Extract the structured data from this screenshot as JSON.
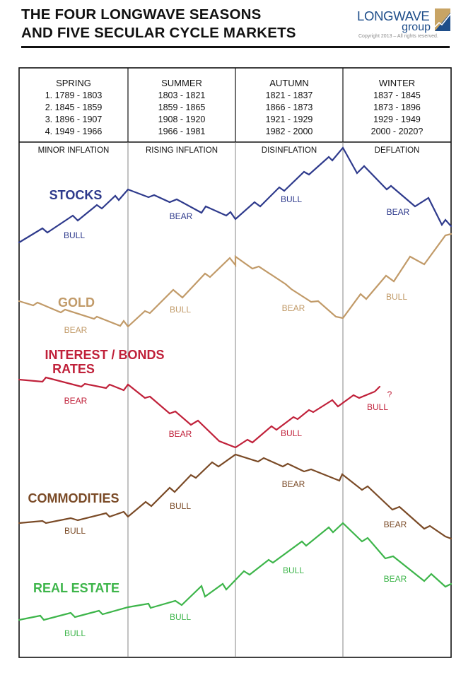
{
  "title": {
    "line1": "THE FOUR LONGWAVE SEASONS",
    "line2": "AND FIVE SECULAR CYCLE MARKETS"
  },
  "logo": {
    "wordmark": "LONGWAVE",
    "group": "group",
    "copyright": "Copyright 2013 – All rights reserved.",
    "color": "#1f4e8a",
    "accent": "#c8a464"
  },
  "seasons": [
    {
      "name": "SPRING",
      "ranges": [
        "1. 1789 - 1803",
        "2. 1845 - 1859",
        "3. 1896 - 1907",
        "4. 1949 - 1966"
      ],
      "phase": "MINOR INFLATION"
    },
    {
      "name": "SUMMER",
      "ranges": [
        "1803 - 1821",
        "1859 - 1865",
        "1908 - 1920",
        "1966 - 1981"
      ],
      "phase": "RISING INFLATION"
    },
    {
      "name": "AUTUMN",
      "ranges": [
        "1821 - 1837",
        "1866 - 1873",
        "1921 - 1929",
        "1982 - 2000"
      ],
      "phase": "DISINFLATION"
    },
    {
      "name": "WINTER",
      "ranges": [
        "1837 - 1845",
        "1873 - 1896",
        "1929 - 1949",
        "2000 - 2020?"
      ],
      "phase": "DEFLATION"
    }
  ],
  "markets": [
    {
      "id": "stocks",
      "title_lines": [
        "STOCKS"
      ],
      "color": "#2e3a8c",
      "labels": [
        {
          "text": "BULL",
          "season": 0
        },
        {
          "text": "BEAR",
          "season": 1
        },
        {
          "text": "BULL",
          "season": 2
        },
        {
          "text": "BEAR",
          "season": 3
        }
      ]
    },
    {
      "id": "gold",
      "title_lines": [
        "GOLD"
      ],
      "color": "#c19a68",
      "labels": [
        {
          "text": "BEAR",
          "season": 0
        },
        {
          "text": "BULL",
          "season": 1
        },
        {
          "text": "BEAR",
          "season": 2
        },
        {
          "text": "BULL",
          "season": 3
        }
      ]
    },
    {
      "id": "rates",
      "title_lines": [
        "INTEREST / BONDS",
        "RATES"
      ],
      "color": "#c0213a",
      "labels": [
        {
          "text": "BEAR",
          "season": 0
        },
        {
          "text": "BEAR",
          "season": 1
        },
        {
          "text": "BULL",
          "season": 2
        },
        {
          "text": "BULL",
          "season": 3
        }
      ],
      "note": "?"
    },
    {
      "id": "commodities",
      "title_lines": [
        "COMMODITIES"
      ],
      "color": "#7a4a26",
      "labels": [
        {
          "text": "BULL",
          "season": 0
        },
        {
          "text": "BULL",
          "season": 1
        },
        {
          "text": "BEAR",
          "season": 2
        },
        {
          "text": "BEAR",
          "season": 3
        }
      ]
    },
    {
      "id": "realestate",
      "title_lines": [
        "REAL ESTATE"
      ],
      "color": "#3db54a",
      "labels": [
        {
          "text": "BULL",
          "season": 0
        },
        {
          "text": "BULL",
          "season": 1
        },
        {
          "text": "BULL",
          "season": 2
        },
        {
          "text": "BEAR",
          "season": 3
        }
      ]
    }
  ]
}
